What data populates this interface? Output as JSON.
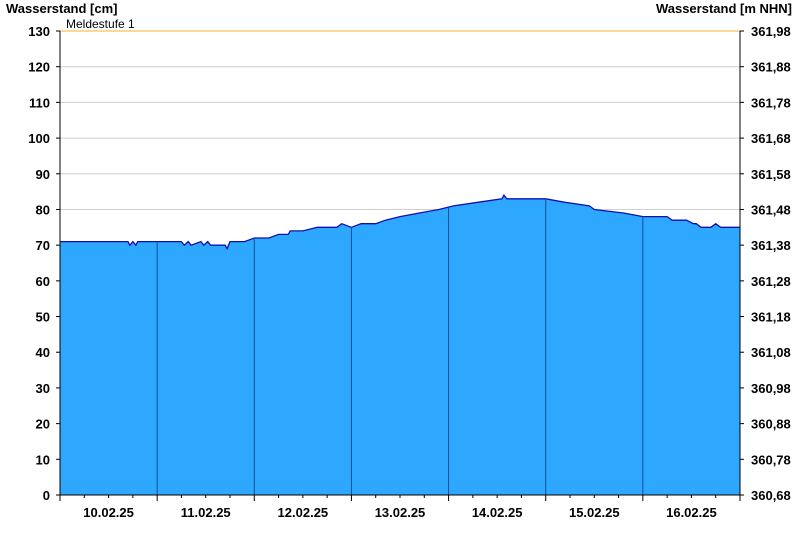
{
  "chart_data": {
    "type": "area",
    "title": "",
    "ylabel_left": "Wasserstand [cm]",
    "ylabel_right": "Wasserstand [m NHN]",
    "xlabel": "",
    "ylim": [
      0,
      130
    ],
    "yticks_left": [
      "0",
      "10",
      "20",
      "30",
      "40",
      "50",
      "60",
      "70",
      "80",
      "90",
      "100",
      "110",
      "120",
      "130"
    ],
    "yticks_right": [
      "360,68",
      "360,78",
      "360,88",
      "360,98",
      "361,08",
      "361,18",
      "361,28",
      "361,38",
      "361,48",
      "361,58",
      "361,68",
      "361,78",
      "361,88",
      "361,98"
    ],
    "x_categories": [
      "10.02.25",
      "11.02.25",
      "12.02.25",
      "13.02.25",
      "14.02.25",
      "15.02.25",
      "16.02.25"
    ],
    "x_day_range": [
      0,
      7
    ],
    "threshold": {
      "label": "Meldestufe 1",
      "value": 130,
      "color": "#f5c15a"
    },
    "colors": {
      "fill": "#2ea8ff",
      "line": "#1010b0",
      "grid": "#cfcfcf",
      "day_separator": "#0e4f96"
    },
    "series": [
      {
        "x": [
          0,
          0.1,
          0.3,
          0.5,
          0.7,
          0.72,
          0.75,
          0.78,
          0.8,
          0.85,
          1.0,
          1.15,
          1.25,
          1.28,
          1.32,
          1.35,
          1.45,
          1.48,
          1.52,
          1.55,
          1.6,
          1.7,
          1.72,
          1.75,
          1.9,
          2.0,
          2.05,
          2.15,
          2.25,
          2.35,
          2.37,
          2.4,
          2.5,
          2.65,
          2.7,
          2.85,
          2.9,
          3.0,
          3.1,
          3.25,
          3.35,
          3.5,
          3.7,
          3.9,
          4.05,
          4.3,
          4.55,
          4.57,
          4.6,
          4.75,
          5.0,
          5.2,
          5.45,
          5.5,
          5.8,
          6.0,
          6.15,
          6.25,
          6.3,
          6.45,
          6.52,
          6.55,
          6.6,
          6.65,
          6.7,
          6.75,
          6.8,
          7.0
        ],
        "y": [
          71,
          71,
          71,
          71,
          71,
          70,
          71,
          70,
          71,
          71,
          71,
          71,
          71,
          70,
          71,
          70,
          71,
          70,
          71,
          70,
          70,
          70,
          69,
          71,
          71,
          72,
          72,
          72,
          73,
          73,
          74,
          74,
          74,
          75,
          75,
          75,
          76,
          75,
          76,
          76,
          77,
          78,
          79,
          80,
          81,
          82,
          83,
          84,
          83,
          83,
          83,
          82,
          81,
          80,
          79,
          78,
          78,
          78,
          77,
          77,
          76,
          76,
          75,
          75,
          75,
          76,
          75,
          75
        ]
      }
    ]
  }
}
